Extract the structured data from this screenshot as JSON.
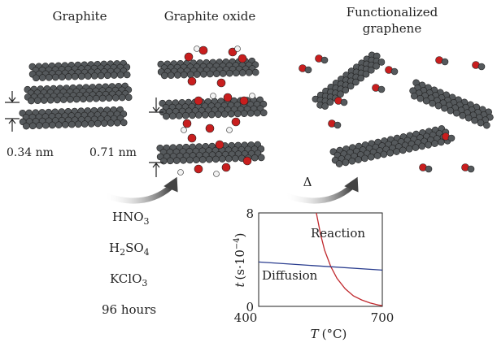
{
  "panels": {
    "graphite": {
      "title": "Graphite",
      "spacing": "0.34 nm"
    },
    "graphite_oxide": {
      "title": "Graphite oxide",
      "spacing": "0.71 nm"
    },
    "functionalized": {
      "title_line1": "Functionalized",
      "title_line2": "graphene"
    }
  },
  "process": {
    "reagents": [
      {
        "base": "HNO",
        "sub": "3"
      },
      {
        "base": "H",
        "sub": "2",
        "rest": "SO",
        "sub2": "4"
      },
      {
        "base": "KClO",
        "sub": "3"
      }
    ],
    "time": "96 hours",
    "heat_symbol": "Δ"
  },
  "colors": {
    "carbon": "#55595c",
    "oxygen": "#c81e1e",
    "hydrogen": "#f2f2f2",
    "reaction": "#c0282d",
    "diffusion": "#2a3d8f",
    "arrow": "#555555"
  },
  "chart_data": {
    "type": "line",
    "xlabel_var": "T",
    "xlabel_unit": "(°C)",
    "ylabel_var": "t",
    "ylabel_unit": "(s·10",
    "ylabel_exp": "−4",
    "xlim": [
      400,
      700
    ],
    "ylim": [
      0,
      8
    ],
    "x_ticks": [
      "400",
      "700"
    ],
    "y_ticks": [
      "0",
      "8"
    ],
    "series": [
      {
        "name": "Reaction",
        "x": [
          540,
          550,
          560,
          575,
          590,
          610,
          630,
          650,
          670,
          690,
          700
        ],
        "y": [
          8.0,
          6.2,
          4.8,
          3.4,
          2.4,
          1.5,
          0.9,
          0.55,
          0.3,
          0.12,
          0.06
        ]
      },
      {
        "name": "Diffusion",
        "x": [
          400,
          700
        ],
        "y": [
          3.8,
          3.1
        ]
      }
    ]
  }
}
